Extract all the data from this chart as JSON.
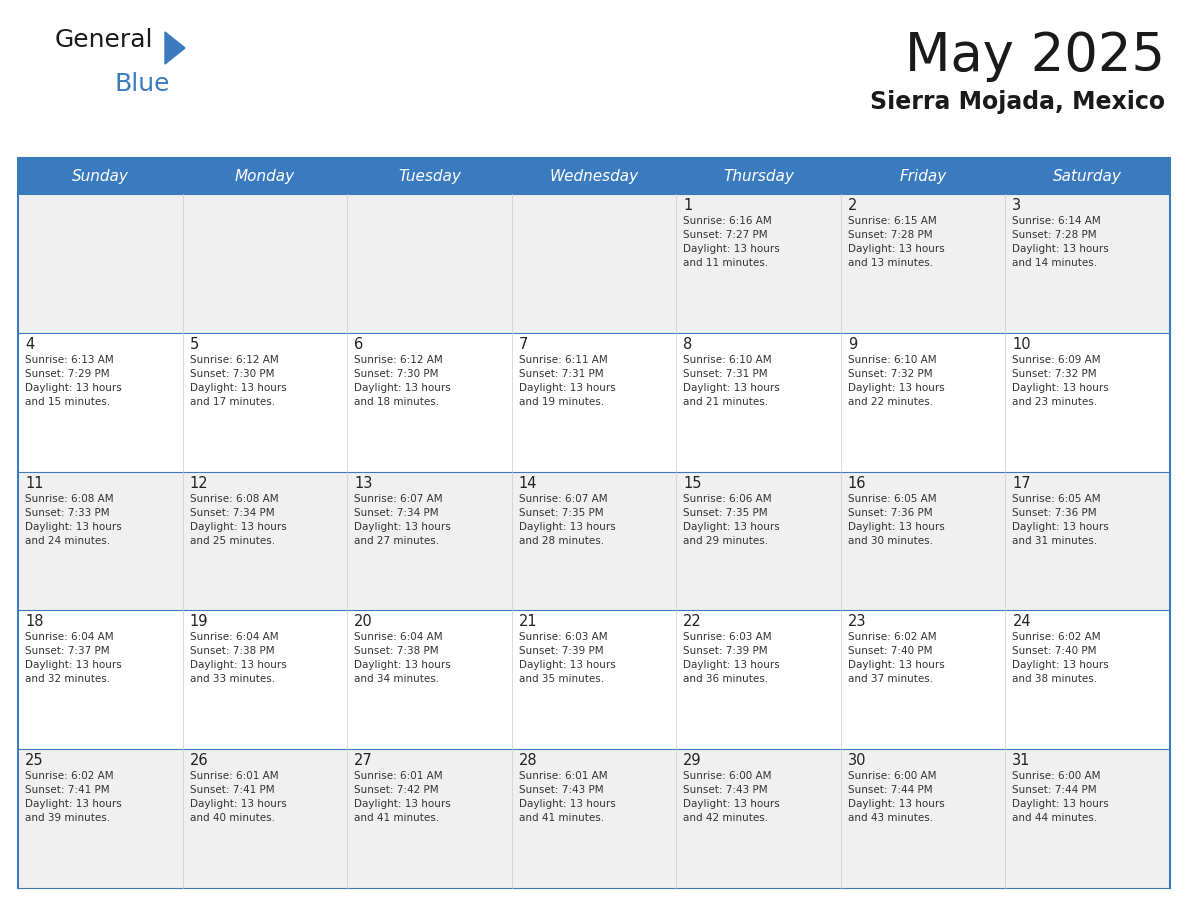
{
  "title": "May 2025",
  "subtitle": "Sierra Mojada, Mexico",
  "header_bg": "#3a7bbf",
  "header_text_color": "#ffffff",
  "cell_bg_odd": "#f0f0f0",
  "cell_bg_even": "#ffffff",
  "border_color": "#3a7bbf",
  "text_color": "#333333",
  "days_of_week": [
    "Sunday",
    "Monday",
    "Tuesday",
    "Wednesday",
    "Thursday",
    "Friday",
    "Saturday"
  ],
  "weeks": [
    [
      {
        "day": "",
        "info": ""
      },
      {
        "day": "",
        "info": ""
      },
      {
        "day": "",
        "info": ""
      },
      {
        "day": "",
        "info": ""
      },
      {
        "day": "1",
        "info": "Sunrise: 6:16 AM\nSunset: 7:27 PM\nDaylight: 13 hours\nand 11 minutes."
      },
      {
        "day": "2",
        "info": "Sunrise: 6:15 AM\nSunset: 7:28 PM\nDaylight: 13 hours\nand 13 minutes."
      },
      {
        "day": "3",
        "info": "Sunrise: 6:14 AM\nSunset: 7:28 PM\nDaylight: 13 hours\nand 14 minutes."
      }
    ],
    [
      {
        "day": "4",
        "info": "Sunrise: 6:13 AM\nSunset: 7:29 PM\nDaylight: 13 hours\nand 15 minutes."
      },
      {
        "day": "5",
        "info": "Sunrise: 6:12 AM\nSunset: 7:30 PM\nDaylight: 13 hours\nand 17 minutes."
      },
      {
        "day": "6",
        "info": "Sunrise: 6:12 AM\nSunset: 7:30 PM\nDaylight: 13 hours\nand 18 minutes."
      },
      {
        "day": "7",
        "info": "Sunrise: 6:11 AM\nSunset: 7:31 PM\nDaylight: 13 hours\nand 19 minutes."
      },
      {
        "day": "8",
        "info": "Sunrise: 6:10 AM\nSunset: 7:31 PM\nDaylight: 13 hours\nand 21 minutes."
      },
      {
        "day": "9",
        "info": "Sunrise: 6:10 AM\nSunset: 7:32 PM\nDaylight: 13 hours\nand 22 minutes."
      },
      {
        "day": "10",
        "info": "Sunrise: 6:09 AM\nSunset: 7:32 PM\nDaylight: 13 hours\nand 23 minutes."
      }
    ],
    [
      {
        "day": "11",
        "info": "Sunrise: 6:08 AM\nSunset: 7:33 PM\nDaylight: 13 hours\nand 24 minutes."
      },
      {
        "day": "12",
        "info": "Sunrise: 6:08 AM\nSunset: 7:34 PM\nDaylight: 13 hours\nand 25 minutes."
      },
      {
        "day": "13",
        "info": "Sunrise: 6:07 AM\nSunset: 7:34 PM\nDaylight: 13 hours\nand 27 minutes."
      },
      {
        "day": "14",
        "info": "Sunrise: 6:07 AM\nSunset: 7:35 PM\nDaylight: 13 hours\nand 28 minutes."
      },
      {
        "day": "15",
        "info": "Sunrise: 6:06 AM\nSunset: 7:35 PM\nDaylight: 13 hours\nand 29 minutes."
      },
      {
        "day": "16",
        "info": "Sunrise: 6:05 AM\nSunset: 7:36 PM\nDaylight: 13 hours\nand 30 minutes."
      },
      {
        "day": "17",
        "info": "Sunrise: 6:05 AM\nSunset: 7:36 PM\nDaylight: 13 hours\nand 31 minutes."
      }
    ],
    [
      {
        "day": "18",
        "info": "Sunrise: 6:04 AM\nSunset: 7:37 PM\nDaylight: 13 hours\nand 32 minutes."
      },
      {
        "day": "19",
        "info": "Sunrise: 6:04 AM\nSunset: 7:38 PM\nDaylight: 13 hours\nand 33 minutes."
      },
      {
        "day": "20",
        "info": "Sunrise: 6:04 AM\nSunset: 7:38 PM\nDaylight: 13 hours\nand 34 minutes."
      },
      {
        "day": "21",
        "info": "Sunrise: 6:03 AM\nSunset: 7:39 PM\nDaylight: 13 hours\nand 35 minutes."
      },
      {
        "day": "22",
        "info": "Sunrise: 6:03 AM\nSunset: 7:39 PM\nDaylight: 13 hours\nand 36 minutes."
      },
      {
        "day": "23",
        "info": "Sunrise: 6:02 AM\nSunset: 7:40 PM\nDaylight: 13 hours\nand 37 minutes."
      },
      {
        "day": "24",
        "info": "Sunrise: 6:02 AM\nSunset: 7:40 PM\nDaylight: 13 hours\nand 38 minutes."
      }
    ],
    [
      {
        "day": "25",
        "info": "Sunrise: 6:02 AM\nSunset: 7:41 PM\nDaylight: 13 hours\nand 39 minutes."
      },
      {
        "day": "26",
        "info": "Sunrise: 6:01 AM\nSunset: 7:41 PM\nDaylight: 13 hours\nand 40 minutes."
      },
      {
        "day": "27",
        "info": "Sunrise: 6:01 AM\nSunset: 7:42 PM\nDaylight: 13 hours\nand 41 minutes."
      },
      {
        "day": "28",
        "info": "Sunrise: 6:01 AM\nSunset: 7:43 PM\nDaylight: 13 hours\nand 41 minutes."
      },
      {
        "day": "29",
        "info": "Sunrise: 6:00 AM\nSunset: 7:43 PM\nDaylight: 13 hours\nand 42 minutes."
      },
      {
        "day": "30",
        "info": "Sunrise: 6:00 AM\nSunset: 7:44 PM\nDaylight: 13 hours\nand 43 minutes."
      },
      {
        "day": "31",
        "info": "Sunrise: 6:00 AM\nSunset: 7:44 PM\nDaylight: 13 hours\nand 44 minutes."
      }
    ]
  ]
}
